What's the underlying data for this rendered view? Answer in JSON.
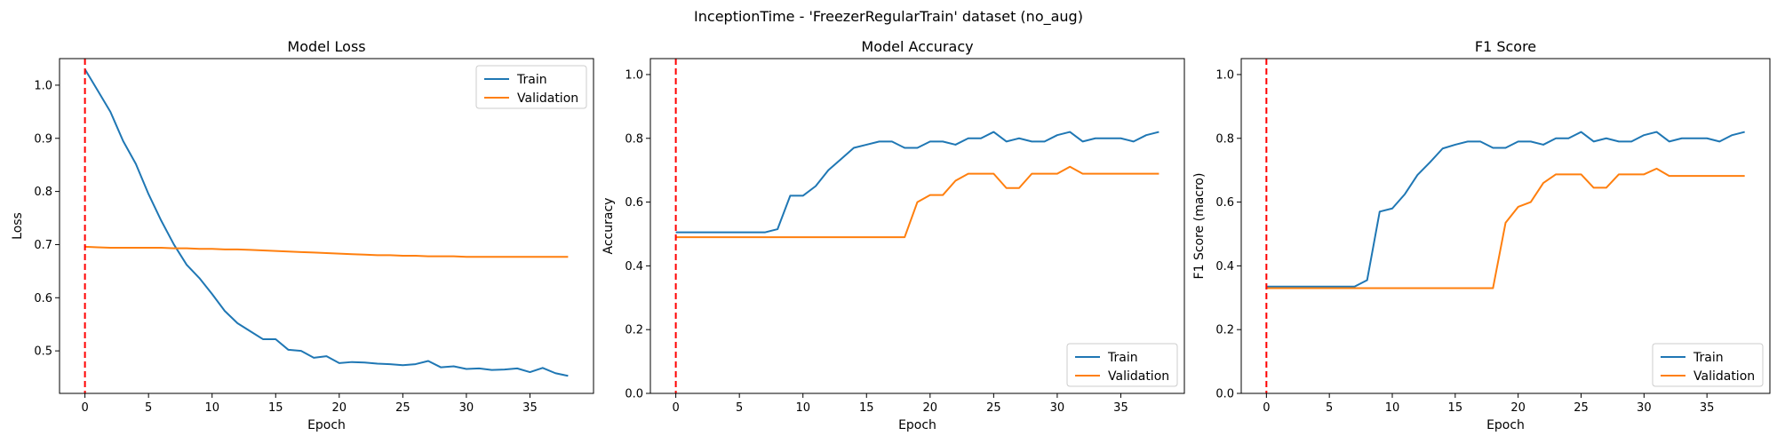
{
  "suptitle": "InceptionTime - 'FreezerRegularTrain' dataset (no_aug)",
  "colors": {
    "train": "#1f77b4",
    "validation": "#ff7f0e",
    "marker": "#ff0000"
  },
  "chart_data": [
    {
      "type": "line",
      "title": "Model Loss",
      "xlabel": "Epoch",
      "ylabel": "Loss",
      "xlim": [
        -2,
        40
      ],
      "ylim": [
        0.42,
        1.05
      ],
      "xticks": [
        0,
        5,
        10,
        15,
        20,
        25,
        30,
        35
      ],
      "yticks": [
        0.5,
        0.6,
        0.7,
        0.8,
        0.9,
        1.0
      ],
      "ytick_labels": [
        "0.5",
        "0.6",
        "0.7",
        "0.8",
        "0.9",
        "1.0"
      ],
      "vline_x": 0,
      "legend_position": "top-right",
      "x": [
        0,
        1,
        2,
        3,
        4,
        5,
        6,
        7,
        8,
        9,
        10,
        11,
        12,
        13,
        14,
        15,
        16,
        17,
        18,
        19,
        20,
        21,
        22,
        23,
        24,
        25,
        26,
        27,
        28,
        29,
        30,
        31,
        32,
        33,
        34,
        35,
        36,
        37,
        38
      ],
      "series": [
        {
          "name": "Train",
          "values": [
            1.03,
            0.99,
            0.95,
            0.895,
            0.852,
            0.795,
            0.745,
            0.7,
            0.662,
            0.637,
            0.607,
            0.575,
            0.552,
            0.537,
            0.522,
            0.522,
            0.502,
            0.5,
            0.487,
            0.49,
            0.477,
            0.479,
            0.478,
            0.476,
            0.475,
            0.473,
            0.475,
            0.481,
            0.469,
            0.471,
            0.466,
            0.467,
            0.464,
            0.465,
            0.467,
            0.46,
            0.468,
            0.458,
            0.453
          ]
        },
        {
          "name": "Validation",
          "values": [
            0.696,
            0.695,
            0.694,
            0.694,
            0.694,
            0.694,
            0.694,
            0.693,
            0.693,
            0.692,
            0.692,
            0.691,
            0.691,
            0.69,
            0.689,
            0.688,
            0.687,
            0.686,
            0.685,
            0.684,
            0.683,
            0.682,
            0.681,
            0.68,
            0.68,
            0.679,
            0.679,
            0.678,
            0.678,
            0.678,
            0.677,
            0.677,
            0.677,
            0.677,
            0.677,
            0.677,
            0.677,
            0.677,
            0.677
          ]
        }
      ]
    },
    {
      "type": "line",
      "title": "Model Accuracy",
      "xlabel": "Epoch",
      "ylabel": "Accuracy",
      "xlim": [
        -2,
        40
      ],
      "ylim": [
        0.0,
        1.05
      ],
      "xticks": [
        0,
        5,
        10,
        15,
        20,
        25,
        30,
        35
      ],
      "yticks": [
        0.0,
        0.2,
        0.4,
        0.6,
        0.8,
        1.0
      ],
      "ytick_labels": [
        "0.0",
        "0.2",
        "0.4",
        "0.6",
        "0.8",
        "1.0"
      ],
      "vline_x": 0,
      "legend_position": "bottom-right",
      "x": [
        0,
        1,
        2,
        3,
        4,
        5,
        6,
        7,
        8,
        9,
        10,
        11,
        12,
        13,
        14,
        15,
        16,
        17,
        18,
        19,
        20,
        21,
        22,
        23,
        24,
        25,
        26,
        27,
        28,
        29,
        30,
        31,
        32,
        33,
        34,
        35,
        36,
        37,
        38
      ],
      "series": [
        {
          "name": "Train",
          "values": [
            0.505,
            0.505,
            0.505,
            0.505,
            0.505,
            0.505,
            0.505,
            0.505,
            0.515,
            0.62,
            0.62,
            0.65,
            0.7,
            0.735,
            0.77,
            0.78,
            0.79,
            0.79,
            0.77,
            0.77,
            0.79,
            0.79,
            0.78,
            0.8,
            0.8,
            0.82,
            0.79,
            0.8,
            0.79,
            0.79,
            0.81,
            0.82,
            0.79,
            0.8,
            0.8,
            0.8,
            0.79,
            0.81,
            0.82
          ]
        },
        {
          "name": "Validation",
          "values": [
            0.49,
            0.49,
            0.49,
            0.49,
            0.49,
            0.49,
            0.49,
            0.49,
            0.49,
            0.49,
            0.49,
            0.49,
            0.49,
            0.49,
            0.49,
            0.49,
            0.49,
            0.49,
            0.49,
            0.6,
            0.622,
            0.622,
            0.667,
            0.689,
            0.689,
            0.689,
            0.644,
            0.644,
            0.689,
            0.689,
            0.689,
            0.711,
            0.689,
            0.689,
            0.689,
            0.689,
            0.689,
            0.689,
            0.689
          ]
        }
      ]
    },
    {
      "type": "line",
      "title": "F1 Score",
      "xlabel": "Epoch",
      "ylabel": "F1 Score (macro)",
      "xlim": [
        -2,
        40
      ],
      "ylim": [
        0.0,
        1.05
      ],
      "xticks": [
        0,
        5,
        10,
        15,
        20,
        25,
        30,
        35
      ],
      "yticks": [
        0.0,
        0.2,
        0.4,
        0.6,
        0.8,
        1.0
      ],
      "ytick_labels": [
        "0.0",
        "0.2",
        "0.4",
        "0.6",
        "0.8",
        "1.0"
      ],
      "vline_x": 0,
      "legend_position": "bottom-right",
      "x": [
        0,
        1,
        2,
        3,
        4,
        5,
        6,
        7,
        8,
        9,
        10,
        11,
        12,
        13,
        14,
        15,
        16,
        17,
        18,
        19,
        20,
        21,
        22,
        23,
        24,
        25,
        26,
        27,
        28,
        29,
        30,
        31,
        32,
        33,
        34,
        35,
        36,
        37,
        38
      ],
      "series": [
        {
          "name": "Train",
          "values": [
            0.335,
            0.335,
            0.335,
            0.335,
            0.335,
            0.335,
            0.335,
            0.335,
            0.355,
            0.57,
            0.58,
            0.625,
            0.685,
            0.725,
            0.768,
            0.78,
            0.79,
            0.79,
            0.77,
            0.77,
            0.79,
            0.79,
            0.78,
            0.8,
            0.8,
            0.82,
            0.79,
            0.8,
            0.79,
            0.79,
            0.81,
            0.82,
            0.79,
            0.8,
            0.8,
            0.8,
            0.79,
            0.81,
            0.82
          ]
        },
        {
          "name": "Validation",
          "values": [
            0.33,
            0.33,
            0.33,
            0.33,
            0.33,
            0.33,
            0.33,
            0.33,
            0.33,
            0.33,
            0.33,
            0.33,
            0.33,
            0.33,
            0.33,
            0.33,
            0.33,
            0.33,
            0.33,
            0.535,
            0.585,
            0.6,
            0.66,
            0.687,
            0.687,
            0.687,
            0.645,
            0.645,
            0.687,
            0.687,
            0.687,
            0.705,
            0.682,
            0.682,
            0.682,
            0.682,
            0.682,
            0.682,
            0.682
          ]
        }
      ]
    }
  ]
}
